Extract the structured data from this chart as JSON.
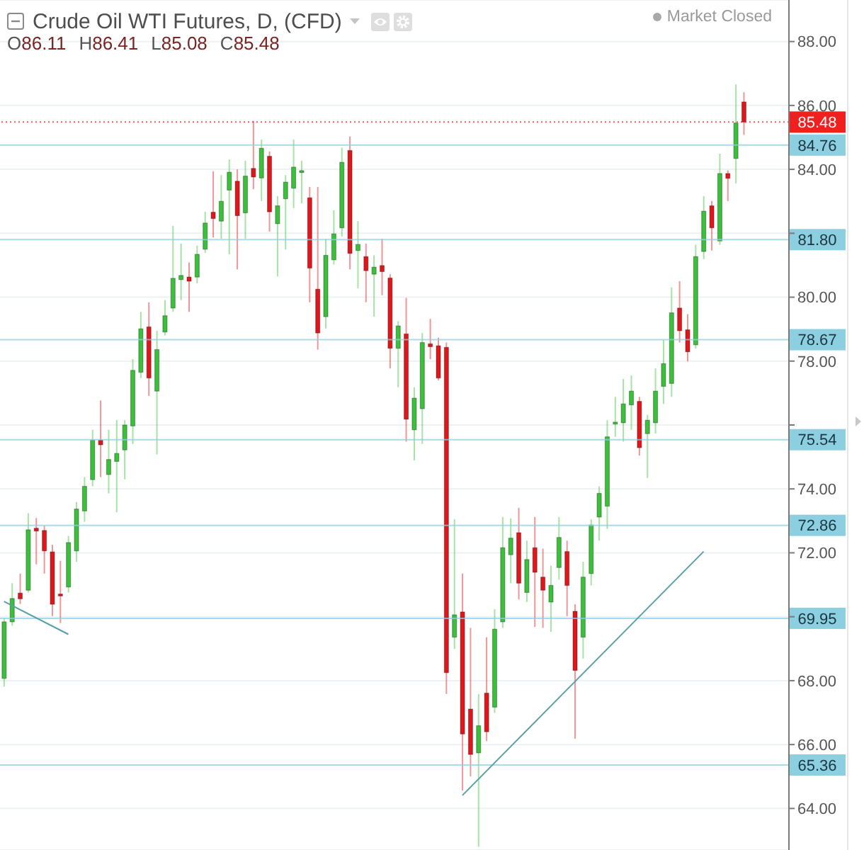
{
  "chart_data": {
    "type": "candlestick",
    "title": "Crude Oil WTI Futures, D, (CFD)",
    "subtitle": "O86.11 H86.41 L85.08 C85.48",
    "annotations": [
      "Market Closed"
    ],
    "categories": [
      null,
      null,
      null,
      null,
      null,
      null,
      null,
      null,
      null,
      null,
      null,
      null,
      null,
      null,
      null,
      null,
      null,
      null,
      null,
      null,
      null,
      null,
      null,
      null,
      null,
      null,
      null,
      null,
      null,
      null,
      null,
      null,
      null,
      null,
      null,
      null,
      null,
      null,
      null,
      null,
      null,
      null,
      null,
      null,
      null,
      null,
      null,
      null,
      null,
      null,
      null,
      null,
      null,
      null,
      null,
      null,
      null,
      null,
      null,
      null,
      null,
      null,
      null,
      null,
      null,
      null,
      null,
      null,
      null,
      null,
      null,
      null,
      null,
      null,
      null,
      null,
      null,
      null,
      null,
      null,
      null,
      null,
      null,
      null,
      null,
      null,
      null,
      null,
      null,
      null,
      null,
      null,
      null
    ],
    "ohlc": [
      [
        68.07,
        69.95,
        67.81,
        69.84
      ],
      [
        69.84,
        71.05,
        69.72,
        70.57
      ],
      [
        70.74,
        71.35,
        70.4,
        70.56
      ],
      [
        70.83,
        73.24,
        70.76,
        72.72
      ],
      [
        72.77,
        73.09,
        71.64,
        72.68
      ],
      [
        72.7,
        72.85,
        71.35,
        72.06
      ],
      [
        72.03,
        72.25,
        70.02,
        70.39
      ],
      [
        70.71,
        71.75,
        69.8,
        70.65
      ],
      [
        70.93,
        72.53,
        70.76,
        72.32
      ],
      [
        72.06,
        73.59,
        71.72,
        73.37
      ],
      [
        73.31,
        74.37,
        72.97,
        74.08
      ],
      [
        74.29,
        75.85,
        74.08,
        75.53
      ],
      [
        75.53,
        76.77,
        74.37,
        75.38
      ],
      [
        74.45,
        75.85,
        73.86,
        74.92
      ],
      [
        74.86,
        76.15,
        73.27,
        75.11
      ],
      [
        75.22,
        76.15,
        74.3,
        76.0
      ],
      [
        75.97,
        78.06,
        75.41,
        77.71
      ],
      [
        77.65,
        79.54,
        77.47,
        79.01
      ],
      [
        79.07,
        79.84,
        76.91,
        77.47
      ],
      [
        77.06,
        78.95,
        75.08,
        78.36
      ],
      [
        78.91,
        79.91,
        78.8,
        79.42
      ],
      [
        79.66,
        82.23,
        79.54,
        80.59
      ],
      [
        80.55,
        81.68,
        79.91,
        80.68
      ],
      [
        80.63,
        81.09,
        79.54,
        80.5
      ],
      [
        80.63,
        81.61,
        80.43,
        81.34
      ],
      [
        81.5,
        82.67,
        81.39,
        82.32
      ],
      [
        82.66,
        83.94,
        81.87,
        82.46
      ],
      [
        82.38,
        83.82,
        81.83,
        83.0
      ],
      [
        83.35,
        84.31,
        81.34,
        83.91
      ],
      [
        83.63,
        84.0,
        80.87,
        82.55
      ],
      [
        82.64,
        84.27,
        81.83,
        83.79
      ],
      [
        84.03,
        85.52,
        83.38,
        83.76
      ],
      [
        83.73,
        84.93,
        83.01,
        84.66
      ],
      [
        84.41,
        84.56,
        82.05,
        82.67
      ],
      [
        82.3,
        83.16,
        80.65,
        82.86
      ],
      [
        83.08,
        83.82,
        81.49,
        83.6
      ],
      [
        83.41,
        84.93,
        82.79,
        84.07
      ],
      [
        83.9,
        84.27,
        82.94,
        83.96
      ],
      [
        83.11,
        83.45,
        79.84,
        80.91
      ],
      [
        80.25,
        83.45,
        78.36,
        78.88
      ],
      [
        79.39,
        81.83,
        79.02,
        81.31
      ],
      [
        81.17,
        82.72,
        81.02,
        81.98
      ],
      [
        82.17,
        84.68,
        81.9,
        84.22
      ],
      [
        84.59,
        85.03,
        80.87,
        81.37
      ],
      [
        81.46,
        82.38,
        80.28,
        81.65
      ],
      [
        81.27,
        81.68,
        79.84,
        80.83
      ],
      [
        80.72,
        81.31,
        79.39,
        80.94
      ],
      [
        80.99,
        81.83,
        80.06,
        80.8
      ],
      [
        80.6,
        80.72,
        77.77,
        78.4
      ],
      [
        78.4,
        79.25,
        77.18,
        79.1
      ],
      [
        78.85,
        79.98,
        75.48,
        76.18
      ],
      [
        75.85,
        77.18,
        74.89,
        76.84
      ],
      [
        76.51,
        78.88,
        75.41,
        78.58
      ],
      [
        78.54,
        79.32,
        78.06,
        78.45
      ],
      [
        78.48,
        78.73,
        77.4,
        77.47
      ],
      [
        78.43,
        78.58,
        67.58,
        68.25
      ],
      [
        69.36,
        73.05,
        68.99,
        70.06
      ],
      [
        70.15,
        71.35,
        64.56,
        66.33
      ],
      [
        67.11,
        69.65,
        65.0,
        65.69
      ],
      [
        65.74,
        67.58,
        62.8,
        66.59
      ],
      [
        67.61,
        69.36,
        66.11,
        66.4
      ],
      [
        67.17,
        70.24,
        66.99,
        69.61
      ],
      [
        69.84,
        73.12,
        69.65,
        72.16
      ],
      [
        71.94,
        73.08,
        71.05,
        72.46
      ],
      [
        72.63,
        73.41,
        70.54,
        71.05
      ],
      [
        70.76,
        72.38,
        70.46,
        71.79
      ],
      [
        72.16,
        73.12,
        69.68,
        71.39
      ],
      [
        71.24,
        72.13,
        69.65,
        70.83
      ],
      [
        70.46,
        71.6,
        69.53,
        70.98
      ],
      [
        71.54,
        73.12,
        71.16,
        72.48
      ],
      [
        72.04,
        72.38,
        70.02,
        70.98
      ],
      [
        70.17,
        70.39,
        66.18,
        68.32
      ],
      [
        69.36,
        71.72,
        68.69,
        71.24
      ],
      [
        71.35,
        73.05,
        70.98,
        72.87
      ],
      [
        73.12,
        74.08,
        72.38,
        73.86
      ],
      [
        73.46,
        76.15,
        72.75,
        75.63
      ],
      [
        76.03,
        76.88,
        75.63,
        76.09
      ],
      [
        76.07,
        77.44,
        75.48,
        76.66
      ],
      [
        76.63,
        77.55,
        75.85,
        77.06
      ],
      [
        76.74,
        76.88,
        75.04,
        75.29
      ],
      [
        75.73,
        76.32,
        74.34,
        76.15
      ],
      [
        76.07,
        77.77,
        75.73,
        77.06
      ],
      [
        77.21,
        78.66,
        76.66,
        77.92
      ],
      [
        77.3,
        80.31,
        76.88,
        79.51
      ],
      [
        79.66,
        80.5,
        78.58,
        78.95
      ],
      [
        78.98,
        79.47,
        77.99,
        78.29
      ],
      [
        78.51,
        81.64,
        78.39,
        81.27
      ],
      [
        81.43,
        83.16,
        81.19,
        82.69
      ],
      [
        82.86,
        83.01,
        81.46,
        82.17
      ],
      [
        81.76,
        84.49,
        81.64,
        83.87
      ],
      [
        83.87,
        83.97,
        83.01,
        83.72
      ],
      [
        84.34,
        86.66,
        83.56,
        85.45
      ],
      [
        86.11,
        86.41,
        85.08,
        85.48
      ]
    ],
    "colors": [
      "#3ac13a",
      "#3ac13a",
      "#e0161b",
      "#3ac13a",
      "#e0161b",
      "#e0161b",
      "#e0161b",
      "#e0161b",
      "#3ac13a",
      "#3ac13a",
      "#3ac13a",
      "#3ac13a",
      "#e0161b",
      "#3ac13a",
      "#3ac13a",
      "#3ac13a",
      "#3ac13a",
      "#3ac13a",
      "#e0161b",
      "#3ac13a",
      "#3ac13a",
      "#3ac13a",
      "#3ac13a",
      "#e0161b",
      "#3ac13a",
      "#3ac13a",
      "#e0161b",
      "#3ac13a",
      "#3ac13a",
      "#e0161b",
      "#3ac13a",
      "#e0161b",
      "#3ac13a",
      "#e0161b",
      "#3ac13a",
      "#3ac13a",
      "#3ac13a",
      "#3ac13a",
      "#e0161b",
      "#e0161b",
      "#3ac13a",
      "#3ac13a",
      "#3ac13a",
      "#e0161b",
      "#3ac13a",
      "#e0161b",
      "#3ac13a",
      "#e0161b",
      "#e0161b",
      "#3ac13a",
      "#e0161b",
      "#3ac13a",
      "#3ac13a",
      "#e0161b",
      "#e0161b",
      "#e0161b",
      "#3ac13a",
      "#e0161b",
      "#e0161b",
      "#3ac13a",
      "#e0161b",
      "#3ac13a",
      "#3ac13a",
      "#3ac13a",
      "#e0161b",
      "#3ac13a",
      "#e0161b",
      "#e0161b",
      "#3ac13a",
      "#3ac13a",
      "#e0161b",
      "#e0161b",
      "#3ac13a",
      "#3ac13a",
      "#3ac13a",
      "#3ac13a",
      "#3ac13a",
      "#3ac13a",
      "#3ac13a",
      "#e0161b",
      "#3ac13a",
      "#3ac13a",
      "#3ac13a",
      "#3ac13a",
      "#e0161b",
      "#e0161b",
      "#3ac13a",
      "#3ac13a",
      "#e0161b",
      "#3ac13a",
      "#e0161b",
      "#3ac13a",
      "#e0161b"
    ],
    "series": [
      {
        "type": "line",
        "color": "#5a9fa6",
        "values": [
          70.48,
          null,
          null,
          null,
          null,
          null,
          null,
          null,
          69.45,
          null,
          null,
          null,
          null,
          null,
          null,
          null,
          null,
          null,
          null,
          null,
          null,
          null,
          null,
          null,
          null,
          null,
          null,
          null,
          null,
          null,
          null,
          null,
          null,
          null,
          null,
          null,
          null,
          null,
          null,
          null,
          null,
          null,
          null,
          null,
          null,
          null,
          null,
          null,
          null,
          null,
          null,
          null,
          null,
          null,
          null,
          null,
          null,
          null,
          null,
          null,
          null,
          null,
          null,
          null,
          null,
          null,
          null,
          null,
          null,
          null,
          null,
          null,
          null,
          null,
          null,
          null,
          null,
          null,
          null,
          null,
          null,
          null,
          null,
          null,
          null,
          null,
          null,
          null,
          null,
          null,
          null,
          null,
          null
        ]
      },
      {
        "type": "line",
        "color": "#5a9fa6",
        "values": [
          null,
          null,
          null,
          null,
          null,
          null,
          null,
          null,
          null,
          null,
          null,
          null,
          null,
          null,
          null,
          null,
          null,
          null,
          null,
          null,
          null,
          null,
          null,
          null,
          null,
          null,
          null,
          null,
          null,
          null,
          null,
          null,
          null,
          null,
          null,
          null,
          null,
          null,
          null,
          null,
          null,
          null,
          null,
          null,
          null,
          null,
          null,
          null,
          null,
          null,
          null,
          null,
          null,
          null,
          null,
          null,
          null,
          64.41,
          null,
          null,
          null,
          null,
          null,
          null,
          null,
          null,
          null,
          null,
          null,
          null,
          null,
          null,
          null,
          null,
          null,
          null,
          null,
          null,
          null,
          null,
          null,
          null,
          null,
          null,
          null,
          null,
          null,
          72.04,
          null,
          null,
          null,
          null,
          null
        ]
      }
    ],
    "ylim": [
      62.7,
      89.3
    ],
    "yticks": [
      {
        "value": 64,
        "label": "64.00"
      },
      {
        "value": 66,
        "label": "66.00"
      },
      {
        "value": 68,
        "label": "68.00"
      },
      {
        "value": 70,
        "label": null
      },
      {
        "value": 72,
        "label": "72.00"
      },
      {
        "value": 74,
        "label": "74.00"
      },
      {
        "value": 76,
        "label": null
      },
      {
        "value": 78,
        "label": "78.00"
      },
      {
        "value": 80,
        "label": "80.00"
      },
      {
        "value": 82,
        "label": null
      },
      {
        "value": 84,
        "label": "84.00"
      },
      {
        "value": 86,
        "label": "86.00"
      },
      {
        "value": 88,
        "label": "88.00"
      }
    ],
    "ref_lines": [
      {
        "axis": "y",
        "value": 85.48,
        "label": "85.48",
        "color": "#f21f1f",
        "line_style": "dotted"
      },
      {
        "axis": "y",
        "value": 84.76,
        "label": "84.76",
        "color": "#8ccfe0"
      },
      {
        "axis": "y",
        "value": 81.8,
        "label": "81.80",
        "color": "#8ccfe0"
      },
      {
        "axis": "y",
        "value": 78.67,
        "label": "78.67",
        "color": "#8ccfe0"
      },
      {
        "axis": "y",
        "value": 75.54,
        "label": "75.54",
        "color": "#8ccfe0"
      },
      {
        "axis": "y",
        "value": 72.86,
        "label": "72.86",
        "color": "#8ccfe0"
      },
      {
        "axis": "y",
        "value": 69.95,
        "label": "69.95",
        "color": "#8ccfe0"
      },
      {
        "axis": "y",
        "value": 65.36,
        "label": "65.36",
        "color": "#8ccfe0"
      }
    ],
    "grid": "y",
    "tick_labels": "y"
  }
}
